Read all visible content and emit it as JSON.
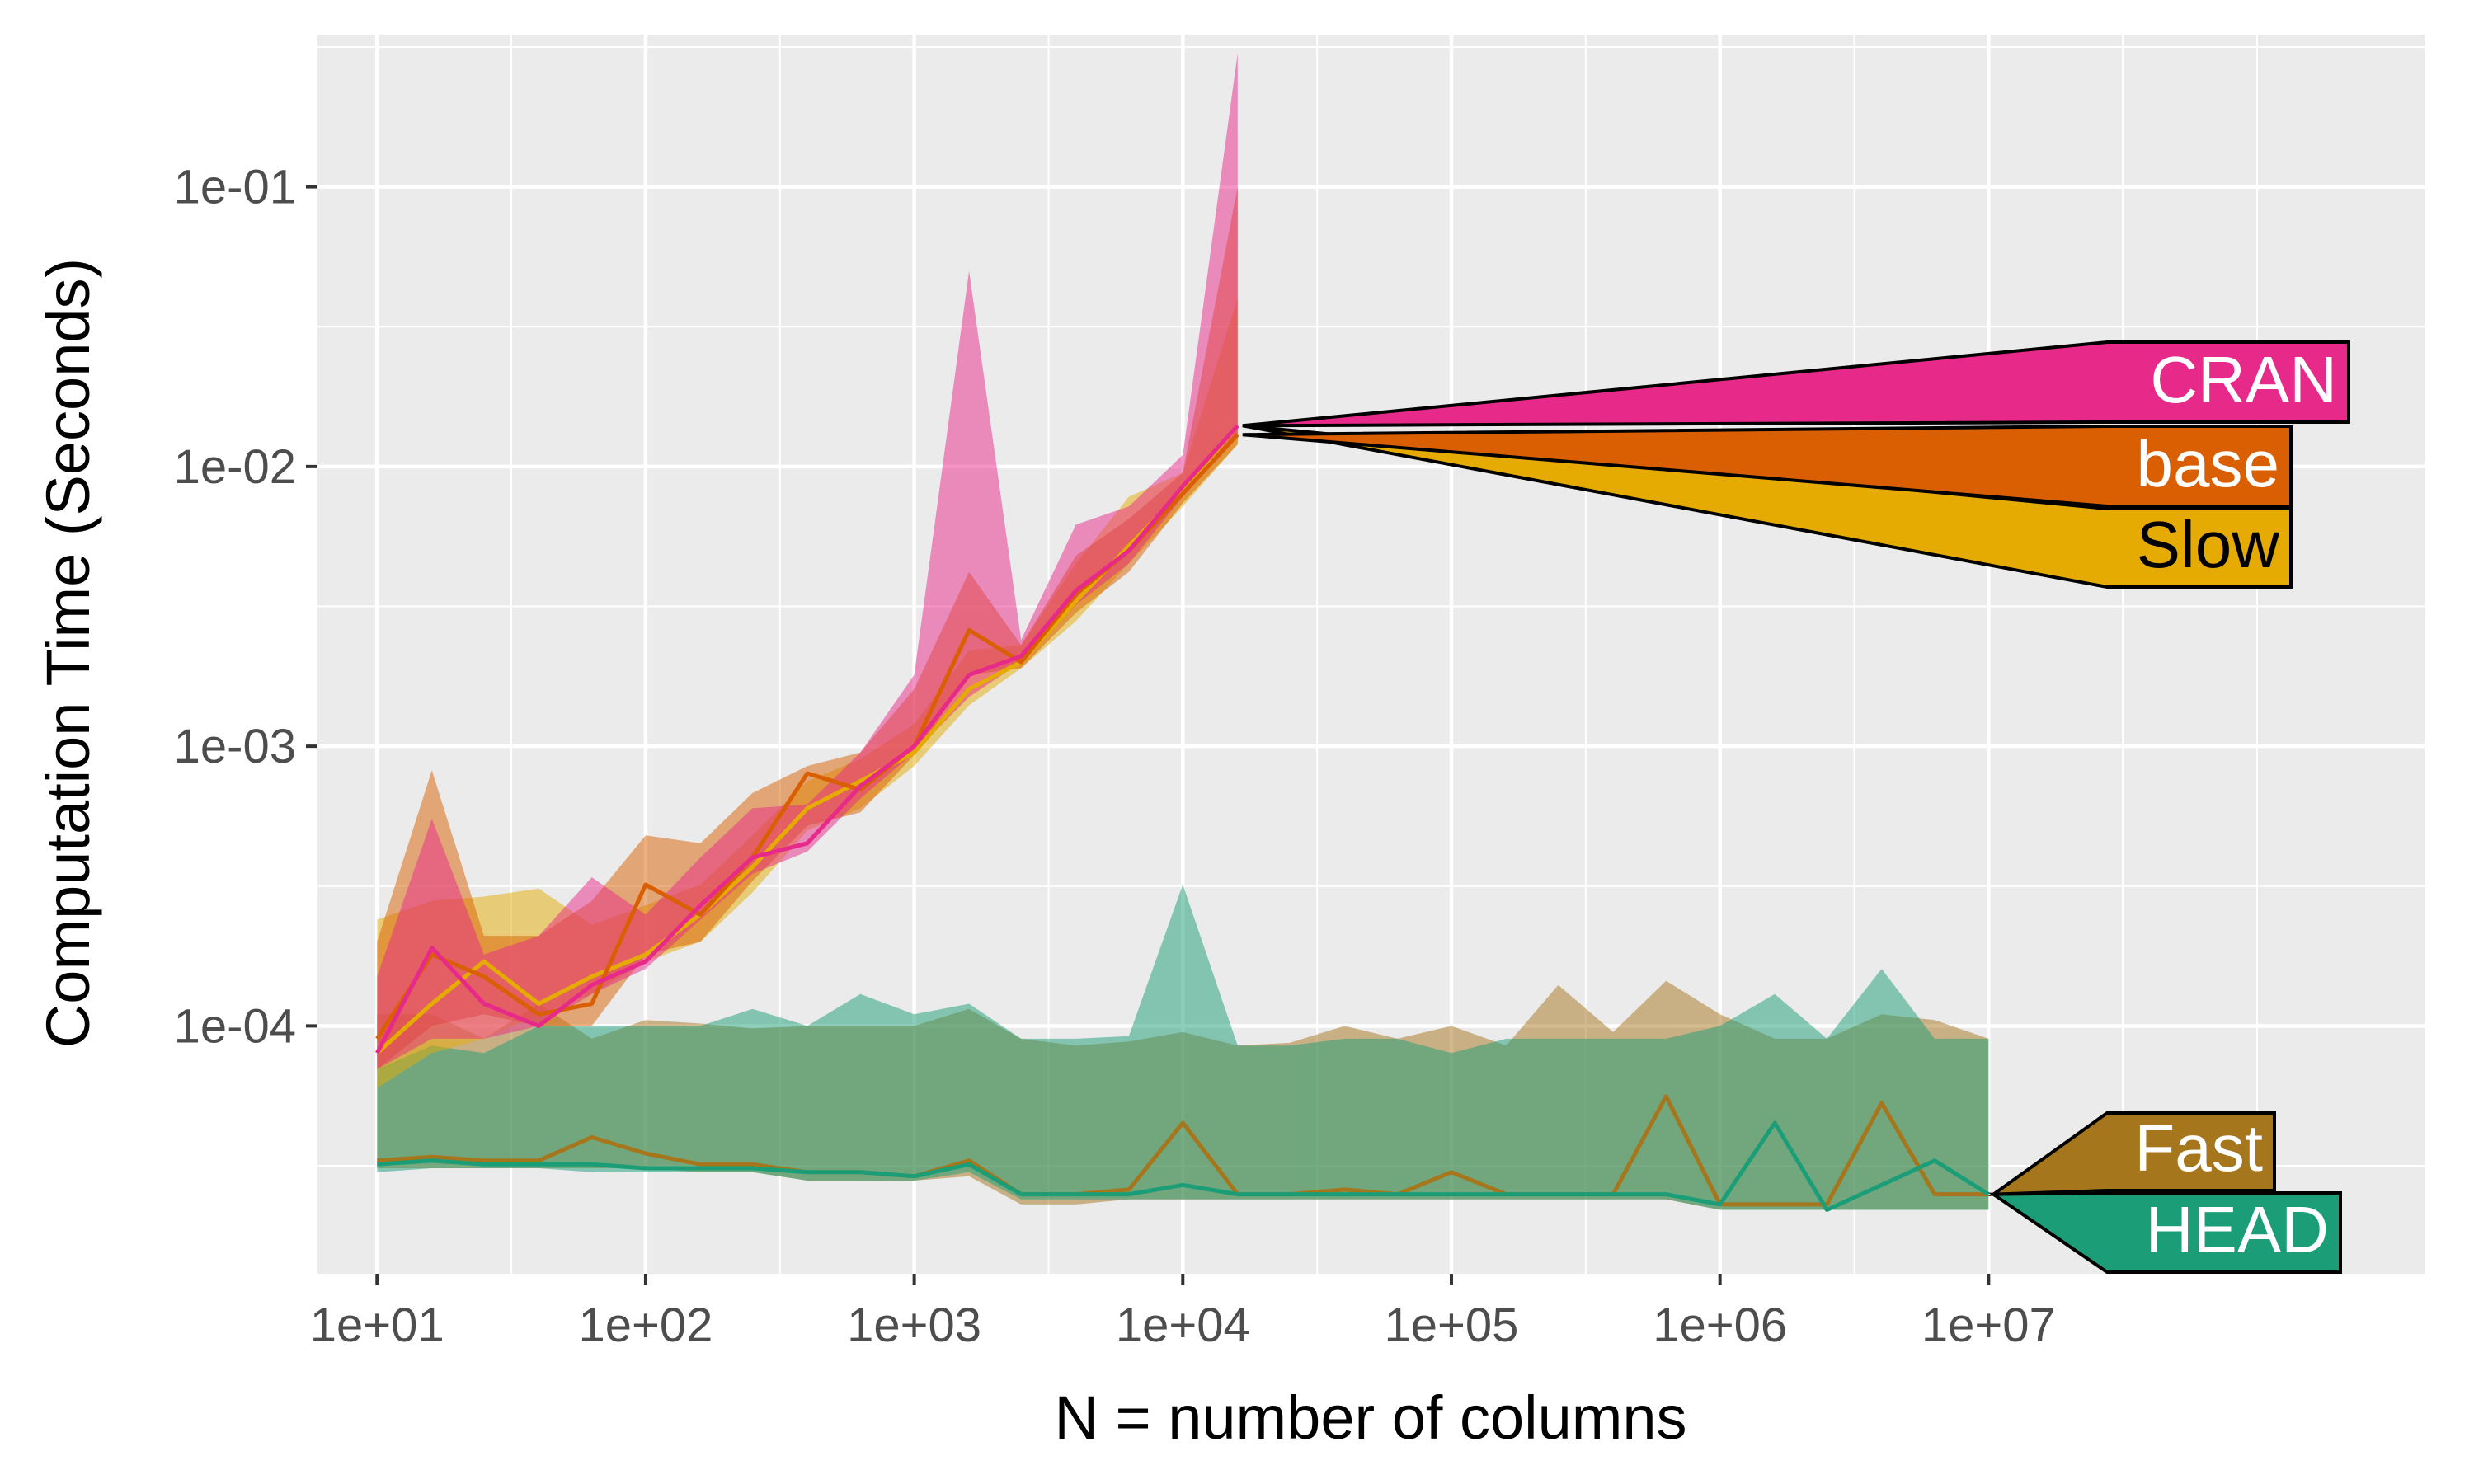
{
  "chart_data": {
    "type": "area",
    "xlabel": "N = number of columns",
    "ylabel": "Computation Time (Seconds)",
    "x_scale": "log10",
    "y_scale": "log10",
    "xlim": [
      6,
      420000000
    ],
    "ylim": [
      1.3e-05,
      0.35
    ],
    "x_ticks": [
      {
        "value": 10,
        "label": "1e+01"
      },
      {
        "value": 100,
        "label": "1e+02"
      },
      {
        "value": 1000,
        "label": "1e+03"
      },
      {
        "value": 10000,
        "label": "1e+04"
      },
      {
        "value": 100000,
        "label": "1e+05"
      },
      {
        "value": 1000000,
        "label": "1e+06"
      },
      {
        "value": 10000000,
        "label": "1e+07"
      }
    ],
    "y_ticks": [
      {
        "value": 0.0001,
        "label": "1e-04"
      },
      {
        "value": 0.001,
        "label": "1e-03"
      },
      {
        "value": 0.01,
        "label": "1e-02"
      },
      {
        "value": 0.1,
        "label": "1e-01"
      }
    ],
    "grid": true,
    "legend": "direct labels at right end of each series",
    "series": [
      {
        "name": "CRAN",
        "color": "#E7298A",
        "text_color": "#ffffff",
        "x": [
          10,
          16,
          25,
          40,
          63,
          100,
          160,
          250,
          400,
          630,
          1000,
          1600,
          2500,
          4000,
          6300,
          10000,
          16000
        ],
        "median": [
          8e-05,
          0.00019,
          0.00012,
          0.0001,
          0.00014,
          0.00017,
          0.00027,
          0.0004,
          0.00045,
          0.00072,
          0.001,
          0.0018,
          0.0021,
          0.0036,
          0.005,
          0.0085,
          0.014
        ],
        "lower": [
          7e-05,
          9e-05,
          9e-05,
          0.0001,
          0.00013,
          0.00016,
          0.00024,
          0.00035,
          0.00042,
          0.00065,
          0.00095,
          0.0015,
          0.002,
          0.0032,
          0.0045,
          0.0078,
          0.013
        ],
        "upper": [
          0.00015,
          0.00055,
          0.00018,
          0.00021,
          0.00034,
          0.00025,
          0.0004,
          0.0006,
          0.00062,
          0.00095,
          0.0018,
          0.05,
          0.0024,
          0.0062,
          0.0072,
          0.011,
          0.3
        ]
      },
      {
        "name": "base",
        "color": "#D95F02",
        "text_color": "#ffffff",
        "x": [
          10,
          16,
          25,
          40,
          63,
          100,
          160,
          250,
          400,
          630,
          1000,
          1600,
          2500,
          4000,
          6300,
          10000,
          16000
        ],
        "median": [
          9e-05,
          0.00018,
          0.00015,
          0.00011,
          0.00012,
          0.00032,
          0.00025,
          0.0004,
          0.0008,
          0.0007,
          0.001,
          0.0026,
          0.002,
          0.0035,
          0.005,
          0.008,
          0.013
        ],
        "lower": [
          7e-05,
          0.0001,
          0.00011,
          0.0001,
          0.0001,
          0.00018,
          0.0002,
          0.00033,
          0.00052,
          0.00058,
          0.00093,
          0.0018,
          0.0019,
          0.003,
          0.0042,
          0.0074,
          0.012
        ],
        "upper": [
          0.0002,
          0.00082,
          0.00021,
          0.00021,
          0.00028,
          0.00048,
          0.00045,
          0.00068,
          0.00085,
          0.00095,
          0.0016,
          0.0042,
          0.0023,
          0.0048,
          0.0065,
          0.0095,
          0.1
        ]
      },
      {
        "name": "Slow",
        "color": "#E6AB02",
        "text_color": "#000000",
        "x": [
          10,
          16,
          25,
          40,
          63,
          100,
          160,
          250,
          400,
          630,
          1000,
          1600,
          2500,
          4000,
          6300,
          10000,
          16000
        ],
        "median": [
          8e-05,
          0.00012,
          0.00017,
          0.00012,
          0.00015,
          0.00018,
          0.00025,
          0.00037,
          0.0006,
          0.00075,
          0.00095,
          0.0016,
          0.002,
          0.0033,
          0.0052,
          0.0082,
          0.014
        ],
        "lower": [
          6e-05,
          8e-05,
          9e-05,
          0.00011,
          0.00013,
          0.00017,
          0.0002,
          0.0003,
          0.0005,
          0.0006,
          0.00085,
          0.0014,
          0.0019,
          0.0028,
          0.0045,
          0.0072,
          0.012
        ],
        "upper": [
          0.00024,
          0.00028,
          0.00029,
          0.00031,
          0.00023,
          0.00027,
          0.00032,
          0.00048,
          0.00075,
          0.0009,
          0.0012,
          0.0022,
          0.0023,
          0.0045,
          0.0078,
          0.0095,
          0.04
        ]
      },
      {
        "name": "Fast",
        "color": "#A6761D",
        "text_color": "#ffffff",
        "x": [
          10,
          16,
          25,
          40,
          63,
          100,
          160,
          250,
          400,
          630,
          1000,
          1600,
          2500,
          4000,
          6300,
          10000,
          16000,
          25000,
          40000,
          63000,
          100000,
          160000,
          250000,
          400000,
          630000,
          1000000,
          1600000,
          2500000,
          4000000,
          6300000,
          10000000
        ],
        "median": [
          3.3e-05,
          3.4e-05,
          3.3e-05,
          3.3e-05,
          4e-05,
          3.5e-05,
          3.2e-05,
          3.2e-05,
          3e-05,
          3e-05,
          2.9e-05,
          3.3e-05,
          2.5e-05,
          2.5e-05,
          2.6e-05,
          4.5e-05,
          2.5e-05,
          2.5e-05,
          2.6e-05,
          2.5e-05,
          3e-05,
          2.5e-05,
          2.5e-05,
          2.5e-05,
          5.6e-05,
          2.3e-05,
          2.3e-05,
          2.3e-05,
          5.3e-05,
          2.5e-05,
          2.5e-05
        ],
        "lower": [
          3.1e-05,
          3.1e-05,
          3.1e-05,
          3.1e-05,
          3.1e-05,
          3.1e-05,
          3e-05,
          3e-05,
          2.8e-05,
          2.8e-05,
          2.8e-05,
          2.9e-05,
          2.3e-05,
          2.3e-05,
          2.4e-05,
          2.4e-05,
          2.4e-05,
          2.4e-05,
          2.4e-05,
          2.4e-05,
          2.4e-05,
          2.4e-05,
          2.4e-05,
          2.4e-05,
          2.4e-05,
          2.2e-05,
          2.2e-05,
          2.2e-05,
          2.2e-05,
          2.2e-05,
          2.2e-05
        ],
        "upper": [
          0.00011,
          0.00011,
          9e-05,
          0.00012,
          9e-05,
          0.000105,
          0.000102,
          9.8e-05,
          0.0001,
          0.0001,
          0.0001,
          0.000115,
          9e-05,
          8.5e-05,
          8.8e-05,
          9.5e-05,
          8.5e-05,
          8.7e-05,
          0.0001,
          9e-05,
          0.0001,
          8.5e-05,
          0.00014,
          9.5e-05,
          0.000145,
          0.00011,
          9e-05,
          9e-05,
          0.00011,
          0.000105,
          9e-05
        ]
      },
      {
        "name": "HEAD",
        "color": "#1B9E77",
        "text_color": "#ffffff",
        "x": [
          10,
          16,
          25,
          40,
          63,
          100,
          160,
          250,
          400,
          630,
          1000,
          1600,
          2500,
          4000,
          6300,
          10000,
          16000,
          25000,
          40000,
          63000,
          100000,
          160000,
          250000,
          400000,
          630000,
          1000000,
          1600000,
          2500000,
          4000000,
          6300000,
          10000000
        ],
        "median": [
          3.2e-05,
          3.3e-05,
          3.2e-05,
          3.2e-05,
          3.2e-05,
          3.1e-05,
          3.1e-05,
          3.1e-05,
          3e-05,
          3e-05,
          2.9e-05,
          3.2e-05,
          2.5e-05,
          2.5e-05,
          2.5e-05,
          2.7e-05,
          2.5e-05,
          2.5e-05,
          2.5e-05,
          2.5e-05,
          2.5e-05,
          2.5e-05,
          2.5e-05,
          2.5e-05,
          2.5e-05,
          2.3e-05,
          4.5e-05,
          2.2e-05,
          2.7e-05,
          3.3e-05,
          2.5e-05
        ],
        "lower": [
          3e-05,
          3.1e-05,
          3.1e-05,
          3.1e-05,
          3e-05,
          3e-05,
          3e-05,
          3e-05,
          2.8e-05,
          2.8e-05,
          2.8e-05,
          3e-05,
          2.4e-05,
          2.4e-05,
          2.4e-05,
          2.4e-05,
          2.4e-05,
          2.4e-05,
          2.4e-05,
          2.4e-05,
          2.4e-05,
          2.4e-05,
          2.4e-05,
          2.4e-05,
          2.4e-05,
          2.2e-05,
          2.2e-05,
          2.2e-05,
          2.2e-05,
          2.2e-05,
          2.2e-05
        ],
        "upper": [
          7e-05,
          8.5e-05,
          8e-05,
          0.0001,
          0.0001,
          0.0001,
          0.0001,
          0.000115,
          0.0001,
          0.00013,
          0.00011,
          0.00012,
          9e-05,
          9e-05,
          9.2e-05,
          0.00032,
          8.5e-05,
          8.5e-05,
          9e-05,
          9e-05,
          8e-05,
          9e-05,
          9e-05,
          9e-05,
          9e-05,
          0.0001,
          0.00013,
          9e-05,
          0.00016,
          9e-05,
          9e-05
        ]
      }
    ]
  }
}
